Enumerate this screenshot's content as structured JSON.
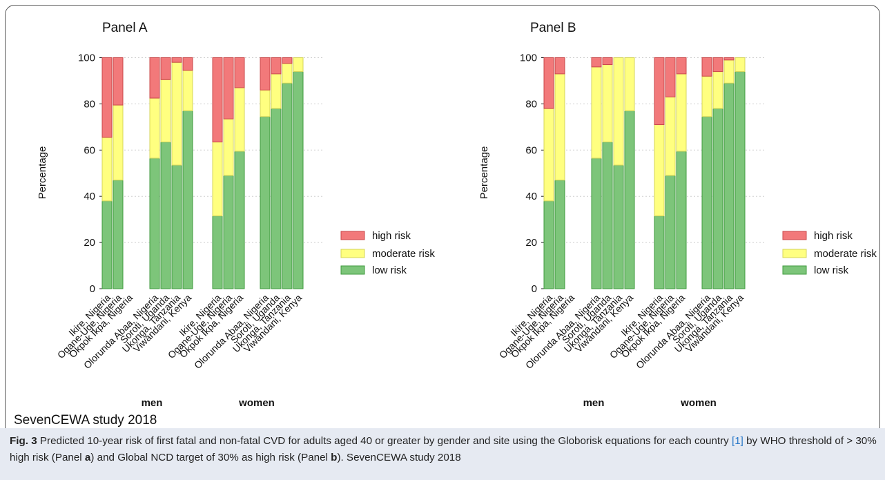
{
  "colors": {
    "high_fill": "#f2797a",
    "high_stroke": "#c9484a",
    "moderate_fill": "#ffff80",
    "moderate_stroke": "#d6d65a",
    "low_fill": "#7dc57a",
    "low_stroke": "#3f9a3d",
    "grid": "#cfcfcf",
    "caption_bg": "#e6eaf2",
    "link": "#2a78c8"
  },
  "chart_data": [
    {
      "type": "bar",
      "stacked": true,
      "title": "Panel A",
      "ylabel": "Percentage",
      "ylim": [
        0,
        100
      ],
      "yticks": [
        0,
        20,
        40,
        60,
        80,
        100
      ],
      "grid": true,
      "legend_position": "right",
      "groups": [
        "men",
        "women"
      ],
      "categories": [
        "Ikire, Nigeria",
        "Ogane-Uge, Nigeria",
        "Okpok Ikpa, Nigeria",
        "Olorunda Abaa, Nigeria",
        "Soroti, Uganda",
        "Ukonga, Tanzania",
        "Viwandani, Kenya"
      ],
      "series": [
        {
          "name": "low risk",
          "men": [
            38,
            47,
            null,
            56.5,
            63.5,
            53.5,
            77
          ],
          "women": [
            31.5,
            49,
            59.5,
            74.5,
            78,
            89,
            94
          ]
        },
        {
          "name": "moderate risk",
          "men": [
            27.5,
            32.5,
            null,
            26,
            27,
            44.5,
            17.5
          ],
          "women": [
            32,
            24.5,
            27.5,
            11.5,
            15,
            8.5,
            6
          ]
        },
        {
          "name": "high risk",
          "men": [
            34.5,
            20.5,
            null,
            17.5,
            9.5,
            2,
            5.5
          ],
          "women": [
            36.5,
            26.5,
            13,
            14,
            7,
            2.5,
            0
          ]
        }
      ]
    },
    {
      "type": "bar",
      "stacked": true,
      "title": "Panel B",
      "ylabel": "Percentage",
      "ylim": [
        0,
        100
      ],
      "yticks": [
        0,
        20,
        40,
        60,
        80,
        100
      ],
      "grid": true,
      "legend_position": "right",
      "groups": [
        "men",
        "women"
      ],
      "categories": [
        "Ikire, Nigeria",
        "Ogane-Uge, Nigeria",
        "Okpok Ikpa, Nigeria",
        "Olorunda Abaa, Nigeria",
        "Soroti, Uganda",
        "Ukonga, Tanzania",
        "Viwandani, Kenya"
      ],
      "series": [
        {
          "name": "low risk",
          "men": [
            38,
            47,
            null,
            56.5,
            63.5,
            53.5,
            77
          ],
          "women": [
            31.5,
            49,
            59.5,
            74.5,
            78,
            89,
            94
          ]
        },
        {
          "name": "moderate risk",
          "men": [
            40,
            46,
            null,
            39.5,
            33.5,
            46.5,
            23
          ],
          "women": [
            39.5,
            34,
            33.5,
            17.5,
            16,
            10,
            6
          ]
        },
        {
          "name": "high risk",
          "men": [
            22,
            7,
            null,
            4,
            3,
            0,
            0
          ],
          "women": [
            29,
            17,
            7,
            8,
            6,
            1,
            0
          ]
        }
      ]
    }
  ],
  "legend": {
    "high": "high risk",
    "moderate": "moderate risk",
    "low": "low risk"
  },
  "study_note": "SevenCEWA study 2018",
  "caption": {
    "fig_label": "Fig. 3",
    "part1": " Predicted 10-year risk of first fatal and non-fatal CVD for adults aged 40 or greater by gender and site using the Globorisk equations for each country ",
    "citation": "[1]",
    "part2": " by WHO threshold of > 30% high risk (Panel ",
    "panel_a": "a",
    "part3": ") and Global NCD target of 30% as high risk (Panel ",
    "panel_b": "b",
    "part4": "). SevenCEWA study 2018"
  }
}
